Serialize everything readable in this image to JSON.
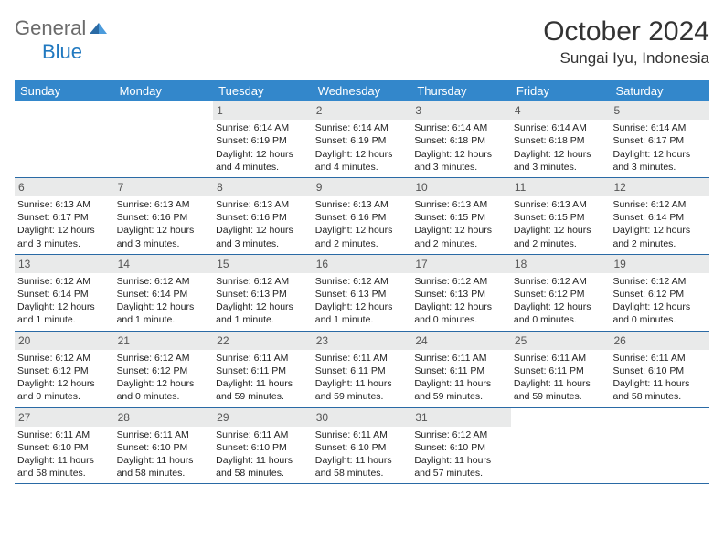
{
  "logo": {
    "text1": "General",
    "text2": "Blue"
  },
  "title": "October 2024",
  "location": "Sungai Iyu, Indonesia",
  "colors": {
    "header_bg": "#3387cb",
    "header_text": "#ffffff",
    "daynum_bg": "#e9eaea",
    "border": "#2a6aa5",
    "logo_gray": "#6b6b6b",
    "logo_blue": "#2179c0"
  },
  "day_headers": [
    "Sunday",
    "Monday",
    "Tuesday",
    "Wednesday",
    "Thursday",
    "Friday",
    "Saturday"
  ],
  "weeks": [
    [
      {
        "empty": true
      },
      {
        "empty": true
      },
      {
        "n": "1",
        "sr": "Sunrise: 6:14 AM",
        "ss": "Sunset: 6:19 PM",
        "d1": "Daylight: 12 hours",
        "d2": "and 4 minutes."
      },
      {
        "n": "2",
        "sr": "Sunrise: 6:14 AM",
        "ss": "Sunset: 6:19 PM",
        "d1": "Daylight: 12 hours",
        "d2": "and 4 minutes."
      },
      {
        "n": "3",
        "sr": "Sunrise: 6:14 AM",
        "ss": "Sunset: 6:18 PM",
        "d1": "Daylight: 12 hours",
        "d2": "and 3 minutes."
      },
      {
        "n": "4",
        "sr": "Sunrise: 6:14 AM",
        "ss": "Sunset: 6:18 PM",
        "d1": "Daylight: 12 hours",
        "d2": "and 3 minutes."
      },
      {
        "n": "5",
        "sr": "Sunrise: 6:14 AM",
        "ss": "Sunset: 6:17 PM",
        "d1": "Daylight: 12 hours",
        "d2": "and 3 minutes."
      }
    ],
    [
      {
        "n": "6",
        "sr": "Sunrise: 6:13 AM",
        "ss": "Sunset: 6:17 PM",
        "d1": "Daylight: 12 hours",
        "d2": "and 3 minutes."
      },
      {
        "n": "7",
        "sr": "Sunrise: 6:13 AM",
        "ss": "Sunset: 6:16 PM",
        "d1": "Daylight: 12 hours",
        "d2": "and 3 minutes."
      },
      {
        "n": "8",
        "sr": "Sunrise: 6:13 AM",
        "ss": "Sunset: 6:16 PM",
        "d1": "Daylight: 12 hours",
        "d2": "and 3 minutes."
      },
      {
        "n": "9",
        "sr": "Sunrise: 6:13 AM",
        "ss": "Sunset: 6:16 PM",
        "d1": "Daylight: 12 hours",
        "d2": "and 2 minutes."
      },
      {
        "n": "10",
        "sr": "Sunrise: 6:13 AM",
        "ss": "Sunset: 6:15 PM",
        "d1": "Daylight: 12 hours",
        "d2": "and 2 minutes."
      },
      {
        "n": "11",
        "sr": "Sunrise: 6:13 AM",
        "ss": "Sunset: 6:15 PM",
        "d1": "Daylight: 12 hours",
        "d2": "and 2 minutes."
      },
      {
        "n": "12",
        "sr": "Sunrise: 6:12 AM",
        "ss": "Sunset: 6:14 PM",
        "d1": "Daylight: 12 hours",
        "d2": "and 2 minutes."
      }
    ],
    [
      {
        "n": "13",
        "sr": "Sunrise: 6:12 AM",
        "ss": "Sunset: 6:14 PM",
        "d1": "Daylight: 12 hours",
        "d2": "and 1 minute."
      },
      {
        "n": "14",
        "sr": "Sunrise: 6:12 AM",
        "ss": "Sunset: 6:14 PM",
        "d1": "Daylight: 12 hours",
        "d2": "and 1 minute."
      },
      {
        "n": "15",
        "sr": "Sunrise: 6:12 AM",
        "ss": "Sunset: 6:13 PM",
        "d1": "Daylight: 12 hours",
        "d2": "and 1 minute."
      },
      {
        "n": "16",
        "sr": "Sunrise: 6:12 AM",
        "ss": "Sunset: 6:13 PM",
        "d1": "Daylight: 12 hours",
        "d2": "and 1 minute."
      },
      {
        "n": "17",
        "sr": "Sunrise: 6:12 AM",
        "ss": "Sunset: 6:13 PM",
        "d1": "Daylight: 12 hours",
        "d2": "and 0 minutes."
      },
      {
        "n": "18",
        "sr": "Sunrise: 6:12 AM",
        "ss": "Sunset: 6:12 PM",
        "d1": "Daylight: 12 hours",
        "d2": "and 0 minutes."
      },
      {
        "n": "19",
        "sr": "Sunrise: 6:12 AM",
        "ss": "Sunset: 6:12 PM",
        "d1": "Daylight: 12 hours",
        "d2": "and 0 minutes."
      }
    ],
    [
      {
        "n": "20",
        "sr": "Sunrise: 6:12 AM",
        "ss": "Sunset: 6:12 PM",
        "d1": "Daylight: 12 hours",
        "d2": "and 0 minutes."
      },
      {
        "n": "21",
        "sr": "Sunrise: 6:12 AM",
        "ss": "Sunset: 6:12 PM",
        "d1": "Daylight: 12 hours",
        "d2": "and 0 minutes."
      },
      {
        "n": "22",
        "sr": "Sunrise: 6:11 AM",
        "ss": "Sunset: 6:11 PM",
        "d1": "Daylight: 11 hours",
        "d2": "and 59 minutes."
      },
      {
        "n": "23",
        "sr": "Sunrise: 6:11 AM",
        "ss": "Sunset: 6:11 PM",
        "d1": "Daylight: 11 hours",
        "d2": "and 59 minutes."
      },
      {
        "n": "24",
        "sr": "Sunrise: 6:11 AM",
        "ss": "Sunset: 6:11 PM",
        "d1": "Daylight: 11 hours",
        "d2": "and 59 minutes."
      },
      {
        "n": "25",
        "sr": "Sunrise: 6:11 AM",
        "ss": "Sunset: 6:11 PM",
        "d1": "Daylight: 11 hours",
        "d2": "and 59 minutes."
      },
      {
        "n": "26",
        "sr": "Sunrise: 6:11 AM",
        "ss": "Sunset: 6:10 PM",
        "d1": "Daylight: 11 hours",
        "d2": "and 58 minutes."
      }
    ],
    [
      {
        "n": "27",
        "sr": "Sunrise: 6:11 AM",
        "ss": "Sunset: 6:10 PM",
        "d1": "Daylight: 11 hours",
        "d2": "and 58 minutes."
      },
      {
        "n": "28",
        "sr": "Sunrise: 6:11 AM",
        "ss": "Sunset: 6:10 PM",
        "d1": "Daylight: 11 hours",
        "d2": "and 58 minutes."
      },
      {
        "n": "29",
        "sr": "Sunrise: 6:11 AM",
        "ss": "Sunset: 6:10 PM",
        "d1": "Daylight: 11 hours",
        "d2": "and 58 minutes."
      },
      {
        "n": "30",
        "sr": "Sunrise: 6:11 AM",
        "ss": "Sunset: 6:10 PM",
        "d1": "Daylight: 11 hours",
        "d2": "and 58 minutes."
      },
      {
        "n": "31",
        "sr": "Sunrise: 6:12 AM",
        "ss": "Sunset: 6:10 PM",
        "d1": "Daylight: 11 hours",
        "d2": "and 57 minutes."
      },
      {
        "empty": true
      },
      {
        "empty": true
      }
    ]
  ]
}
